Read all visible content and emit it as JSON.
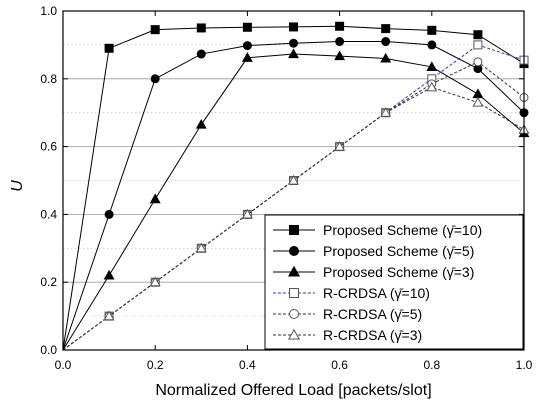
{
  "chart_data": {
    "type": "line",
    "xlabel": "Normalized Offered Load [packets/slot]",
    "ylabel": "U",
    "xlim": [
      0.0,
      1.0
    ],
    "ylim": [
      0.0,
      1.0
    ],
    "x_ticks": [
      "0.0",
      "0.2",
      "0.4",
      "0.6",
      "0.8",
      "1.0"
    ],
    "y_ticks": [
      "0.0",
      "0.2",
      "0.4",
      "0.6",
      "0.8",
      "1.0"
    ],
    "grid": "horizontal, dotted minor lines at half steps",
    "legend_position": "bottom-right",
    "series": [
      {
        "name": "Proposed Scheme (γ̄=10)",
        "marker": "square",
        "filled": true,
        "line_style": "solid",
        "color": "#000000",
        "x": [
          0,
          0.1,
          0.2,
          0.3,
          0.4,
          0.5,
          0.6,
          0.7,
          0.8,
          0.9,
          1.0
        ],
        "y": [
          0,
          0.89,
          0.945,
          0.95,
          0.952,
          0.953,
          0.955,
          0.948,
          0.943,
          0.93,
          0.845
        ]
      },
      {
        "name": "Proposed Scheme (γ̄=5)",
        "marker": "circle",
        "filled": true,
        "line_style": "solid",
        "color": "#000000",
        "x": [
          0,
          0.1,
          0.2,
          0.3,
          0.4,
          0.5,
          0.6,
          0.7,
          0.8,
          0.9,
          1.0
        ],
        "y": [
          0,
          0.4,
          0.8,
          0.873,
          0.898,
          0.905,
          0.91,
          0.91,
          0.9,
          0.83,
          0.7
        ]
      },
      {
        "name": "Proposed Scheme (γ̄=3)",
        "marker": "triangle",
        "filled": true,
        "line_style": "solid",
        "color": "#000000",
        "x": [
          0,
          0.1,
          0.2,
          0.3,
          0.4,
          0.5,
          0.6,
          0.7,
          0.8,
          0.9,
          1.0
        ],
        "y": [
          0,
          0.22,
          0.445,
          0.665,
          0.862,
          0.873,
          0.867,
          0.86,
          0.835,
          0.755,
          0.64
        ]
      },
      {
        "name": "R-CRDSA (γ̄=10)",
        "marker": "square",
        "filled": false,
        "line_style": "dashed",
        "color": "#3333cc",
        "x": [
          0,
          0.1,
          0.2,
          0.3,
          0.4,
          0.5,
          0.6,
          0.7,
          0.8,
          0.9,
          1.0
        ],
        "y": [
          0,
          0.1,
          0.2,
          0.3,
          0.4,
          0.5,
          0.6,
          0.7,
          0.8,
          0.9,
          0.855
        ]
      },
      {
        "name": "R-CRDSA (γ̄=5)",
        "marker": "circle",
        "filled": false,
        "line_style": "dashed",
        "color": "#333333",
        "x": [
          0,
          0.1,
          0.2,
          0.3,
          0.4,
          0.5,
          0.6,
          0.7,
          0.8,
          0.9,
          1.0
        ],
        "y": [
          0,
          0.1,
          0.2,
          0.3,
          0.4,
          0.5,
          0.6,
          0.7,
          0.785,
          0.85,
          0.745
        ]
      },
      {
        "name": "R-CRDSA (γ̄=3)",
        "marker": "triangle",
        "filled": false,
        "line_style": "dashed",
        "color": "#333333",
        "x": [
          0,
          0.1,
          0.2,
          0.3,
          0.4,
          0.5,
          0.6,
          0.7,
          0.8,
          0.9,
          1.0
        ],
        "y": [
          0,
          0.1,
          0.2,
          0.3,
          0.4,
          0.5,
          0.6,
          0.7,
          0.775,
          0.73,
          0.65
        ]
      }
    ]
  }
}
